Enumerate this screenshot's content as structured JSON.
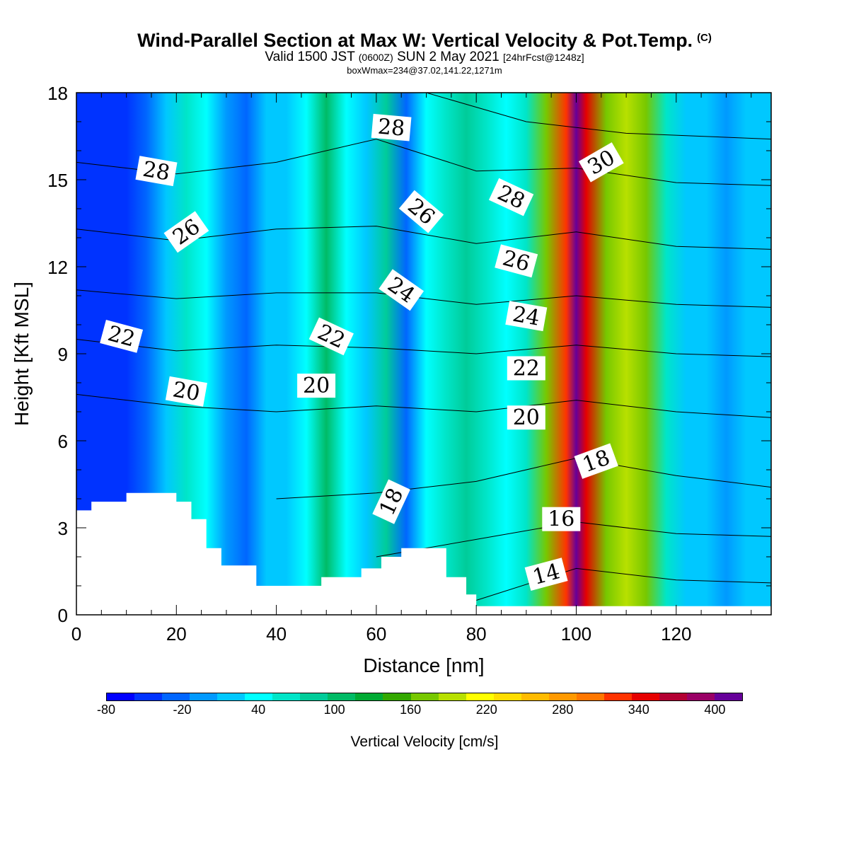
{
  "header": {
    "title": "Wind-Parallel Section at Max W: Vertical Velocity & Pot.Temp.",
    "copyright": "(C)",
    "valid_prefix": "Valid 1500 JST",
    "valid_utc": "(0600Z)",
    "valid_date": "SUN 2 May 2021",
    "forecast": "[24hrFcst@1248z]",
    "box_info": "boxWmax=234@37.02,141.22,1271m"
  },
  "chart_data": {
    "type": "heatmap",
    "xlabel": "Distance [nm]",
    "ylabel": "Height [Kft MSL]",
    "xlim": [
      0,
      139
    ],
    "ylim": [
      0,
      18
    ],
    "x_ticks": [
      "0",
      "20",
      "40",
      "60",
      "80",
      "100",
      "120"
    ],
    "y_ticks": [
      "0",
      "3",
      "6",
      "9",
      "12",
      "15",
      "18"
    ],
    "colorbar": {
      "label": "Vertical Velocity [cm/s]",
      "tick_labels": [
        "-80",
        "-20",
        "40",
        "100",
        "160",
        "220",
        "280",
        "340",
        "400"
      ],
      "colors": [
        "#0000ff",
        "#0033ff",
        "#0066ff",
        "#0099ff",
        "#00c8ff",
        "#00ffff",
        "#00e5c8",
        "#00cc99",
        "#00bb66",
        "#00aa33",
        "#33a800",
        "#77c800",
        "#b8e000",
        "#ffff00",
        "#ffdd00",
        "#ffbb00",
        "#ff9900",
        "#ff7700",
        "#ff3300",
        "#e60000",
        "#b30033",
        "#990066",
        "#660099"
      ]
    },
    "vertical_velocity_columns": [
      {
        "x": 2,
        "w": -40
      },
      {
        "x": 6,
        "w": -55
      },
      {
        "x": 10,
        "w": -45
      },
      {
        "x": 14,
        "w": -30
      },
      {
        "x": 18,
        "w": 10
      },
      {
        "x": 22,
        "w": 70
      },
      {
        "x": 26,
        "w": 50
      },
      {
        "x": 30,
        "w": 0
      },
      {
        "x": 34,
        "w": -25
      },
      {
        "x": 38,
        "w": 20
      },
      {
        "x": 42,
        "w": 15
      },
      {
        "x": 46,
        "w": 30
      },
      {
        "x": 50,
        "w": 100
      },
      {
        "x": 54,
        "w": 40
      },
      {
        "x": 58,
        "w": 20
      },
      {
        "x": 62,
        "w": 80
      },
      {
        "x": 66,
        "w": -20
      },
      {
        "x": 70,
        "w": 30
      },
      {
        "x": 74,
        "w": 60
      },
      {
        "x": 78,
        "w": 80
      },
      {
        "x": 82,
        "w": 60
      },
      {
        "x": 86,
        "w": 40
      },
      {
        "x": 90,
        "w": 70
      },
      {
        "x": 94,
        "w": 160
      },
      {
        "x": 98,
        "w": 330
      },
      {
        "x": 100,
        "w": 400
      },
      {
        "x": 102,
        "w": 340
      },
      {
        "x": 106,
        "w": 160
      },
      {
        "x": 110,
        "w": 200
      },
      {
        "x": 114,
        "w": 160
      },
      {
        "x": 118,
        "w": 70
      },
      {
        "x": 122,
        "w": 20
      },
      {
        "x": 126,
        "w": 10
      },
      {
        "x": 130,
        "w": 0
      },
      {
        "x": 134,
        "w": 15
      },
      {
        "x": 138,
        "w": 10
      }
    ],
    "terrain_kft": [
      {
        "x": 0,
        "h": 3.6
      },
      {
        "x": 3,
        "h": 3.9
      },
      {
        "x": 10,
        "h": 4.2
      },
      {
        "x": 20,
        "h": 3.9
      },
      {
        "x": 23,
        "h": 3.3
      },
      {
        "x": 26,
        "h": 2.3
      },
      {
        "x": 29,
        "h": 1.7
      },
      {
        "x": 36,
        "h": 1.0
      },
      {
        "x": 44,
        "h": 1.0
      },
      {
        "x": 49,
        "h": 1.3
      },
      {
        "x": 57,
        "h": 1.6
      },
      {
        "x": 61,
        "h": 2.0
      },
      {
        "x": 65,
        "h": 2.3
      },
      {
        "x": 74,
        "h": 1.3
      },
      {
        "x": 78,
        "h": 0.7
      },
      {
        "x": 80,
        "h": 0.3
      },
      {
        "x": 139,
        "h": 0.3
      }
    ],
    "potential_temperature_contours": [
      {
        "value": "14",
        "levels": [
          {
            "x": 80,
            "y": 0.5
          },
          {
            "x": 100,
            "y": 1.6
          },
          {
            "x": 120,
            "y": 1.2
          },
          {
            "x": 139,
            "y": 1.1
          }
        ]
      },
      {
        "value": "16",
        "levels": [
          {
            "x": 60,
            "y": 2.0
          },
          {
            "x": 80,
            "y": 2.6
          },
          {
            "x": 100,
            "y": 3.2
          },
          {
            "x": 120,
            "y": 2.8
          },
          {
            "x": 139,
            "y": 2.7
          }
        ]
      },
      {
        "value": "18",
        "levels": [
          {
            "x": 40,
            "y": 4.0
          },
          {
            "x": 60,
            "y": 4.2
          },
          {
            "x": 80,
            "y": 4.6
          },
          {
            "x": 100,
            "y": 5.4
          },
          {
            "x": 120,
            "y": 4.8
          },
          {
            "x": 139,
            "y": 4.4
          }
        ]
      },
      {
        "value": "20",
        "levels": [
          {
            "x": 0,
            "y": 7.6
          },
          {
            "x": 20,
            "y": 7.2
          },
          {
            "x": 40,
            "y": 7.0
          },
          {
            "x": 60,
            "y": 7.2
          },
          {
            "x": 80,
            "y": 7.0
          },
          {
            "x": 100,
            "y": 7.4
          },
          {
            "x": 120,
            "y": 7.0
          },
          {
            "x": 139,
            "y": 6.8
          }
        ]
      },
      {
        "value": "22",
        "levels": [
          {
            "x": 0,
            "y": 9.5
          },
          {
            "x": 20,
            "y": 9.1
          },
          {
            "x": 40,
            "y": 9.3
          },
          {
            "x": 60,
            "y": 9.2
          },
          {
            "x": 80,
            "y": 9.0
          },
          {
            "x": 100,
            "y": 9.3
          },
          {
            "x": 120,
            "y": 9.0
          },
          {
            "x": 139,
            "y": 8.9
          }
        ]
      },
      {
        "value": "24",
        "levels": [
          {
            "x": 0,
            "y": 11.2
          },
          {
            "x": 20,
            "y": 10.9
          },
          {
            "x": 40,
            "y": 11.1
          },
          {
            "x": 60,
            "y": 11.1
          },
          {
            "x": 80,
            "y": 10.7
          },
          {
            "x": 100,
            "y": 11.0
          },
          {
            "x": 120,
            "y": 10.7
          },
          {
            "x": 139,
            "y": 10.6
          }
        ]
      },
      {
        "value": "26",
        "levels": [
          {
            "x": 0,
            "y": 13.3
          },
          {
            "x": 20,
            "y": 12.9
          },
          {
            "x": 40,
            "y": 13.3
          },
          {
            "x": 60,
            "y": 13.4
          },
          {
            "x": 80,
            "y": 12.8
          },
          {
            "x": 100,
            "y": 13.2
          },
          {
            "x": 120,
            "y": 12.7
          },
          {
            "x": 139,
            "y": 12.6
          }
        ]
      },
      {
        "value": "28",
        "levels": [
          {
            "x": 0,
            "y": 15.6
          },
          {
            "x": 20,
            "y": 15.2
          },
          {
            "x": 40,
            "y": 15.6
          },
          {
            "x": 60,
            "y": 16.4
          },
          {
            "x": 80,
            "y": 15.3
          },
          {
            "x": 100,
            "y": 15.4
          },
          {
            "x": 120,
            "y": 14.9
          },
          {
            "x": 139,
            "y": 14.8
          }
        ]
      },
      {
        "value": "30",
        "levels": [
          {
            "x": 70,
            "y": 18.0
          },
          {
            "x": 90,
            "y": 17.0
          },
          {
            "x": 110,
            "y": 16.6
          },
          {
            "x": 139,
            "y": 16.4
          }
        ]
      }
    ],
    "contour_labels": [
      {
        "text": "28",
        "x": 16,
        "y": 15.3,
        "rot": 10
      },
      {
        "text": "26",
        "x": 22,
        "y": 13.2,
        "rot": -35
      },
      {
        "text": "22",
        "x": 9,
        "y": 9.6,
        "rot": 15
      },
      {
        "text": "20",
        "x": 22,
        "y": 7.7,
        "rot": 10
      },
      {
        "text": "28",
        "x": 63,
        "y": 16.8,
        "rot": 5
      },
      {
        "text": "26",
        "x": 69,
        "y": 13.9,
        "rot": 40
      },
      {
        "text": "24",
        "x": 65,
        "y": 11.2,
        "rot": 35
      },
      {
        "text": "22",
        "x": 51,
        "y": 9.6,
        "rot": 25
      },
      {
        "text": "20",
        "x": 48,
        "y": 7.9,
        "rot": 0
      },
      {
        "text": "18",
        "x": 63,
        "y": 3.9,
        "rot": -65
      },
      {
        "text": "28",
        "x": 87,
        "y": 14.4,
        "rot": 25
      },
      {
        "text": "26",
        "x": 88,
        "y": 12.2,
        "rot": 15
      },
      {
        "text": "24",
        "x": 90,
        "y": 10.3,
        "rot": 10
      },
      {
        "text": "22",
        "x": 90,
        "y": 8.5,
        "rot": 0
      },
      {
        "text": "20",
        "x": 90,
        "y": 6.8,
        "rot": 0
      },
      {
        "text": "30",
        "x": 105,
        "y": 15.6,
        "rot": -30
      },
      {
        "text": "18",
        "x": 104,
        "y": 5.3,
        "rot": -20
      },
      {
        "text": "16",
        "x": 97,
        "y": 3.3,
        "rot": 0
      },
      {
        "text": "14",
        "x": 94,
        "y": 1.4,
        "rot": -15
      }
    ]
  }
}
